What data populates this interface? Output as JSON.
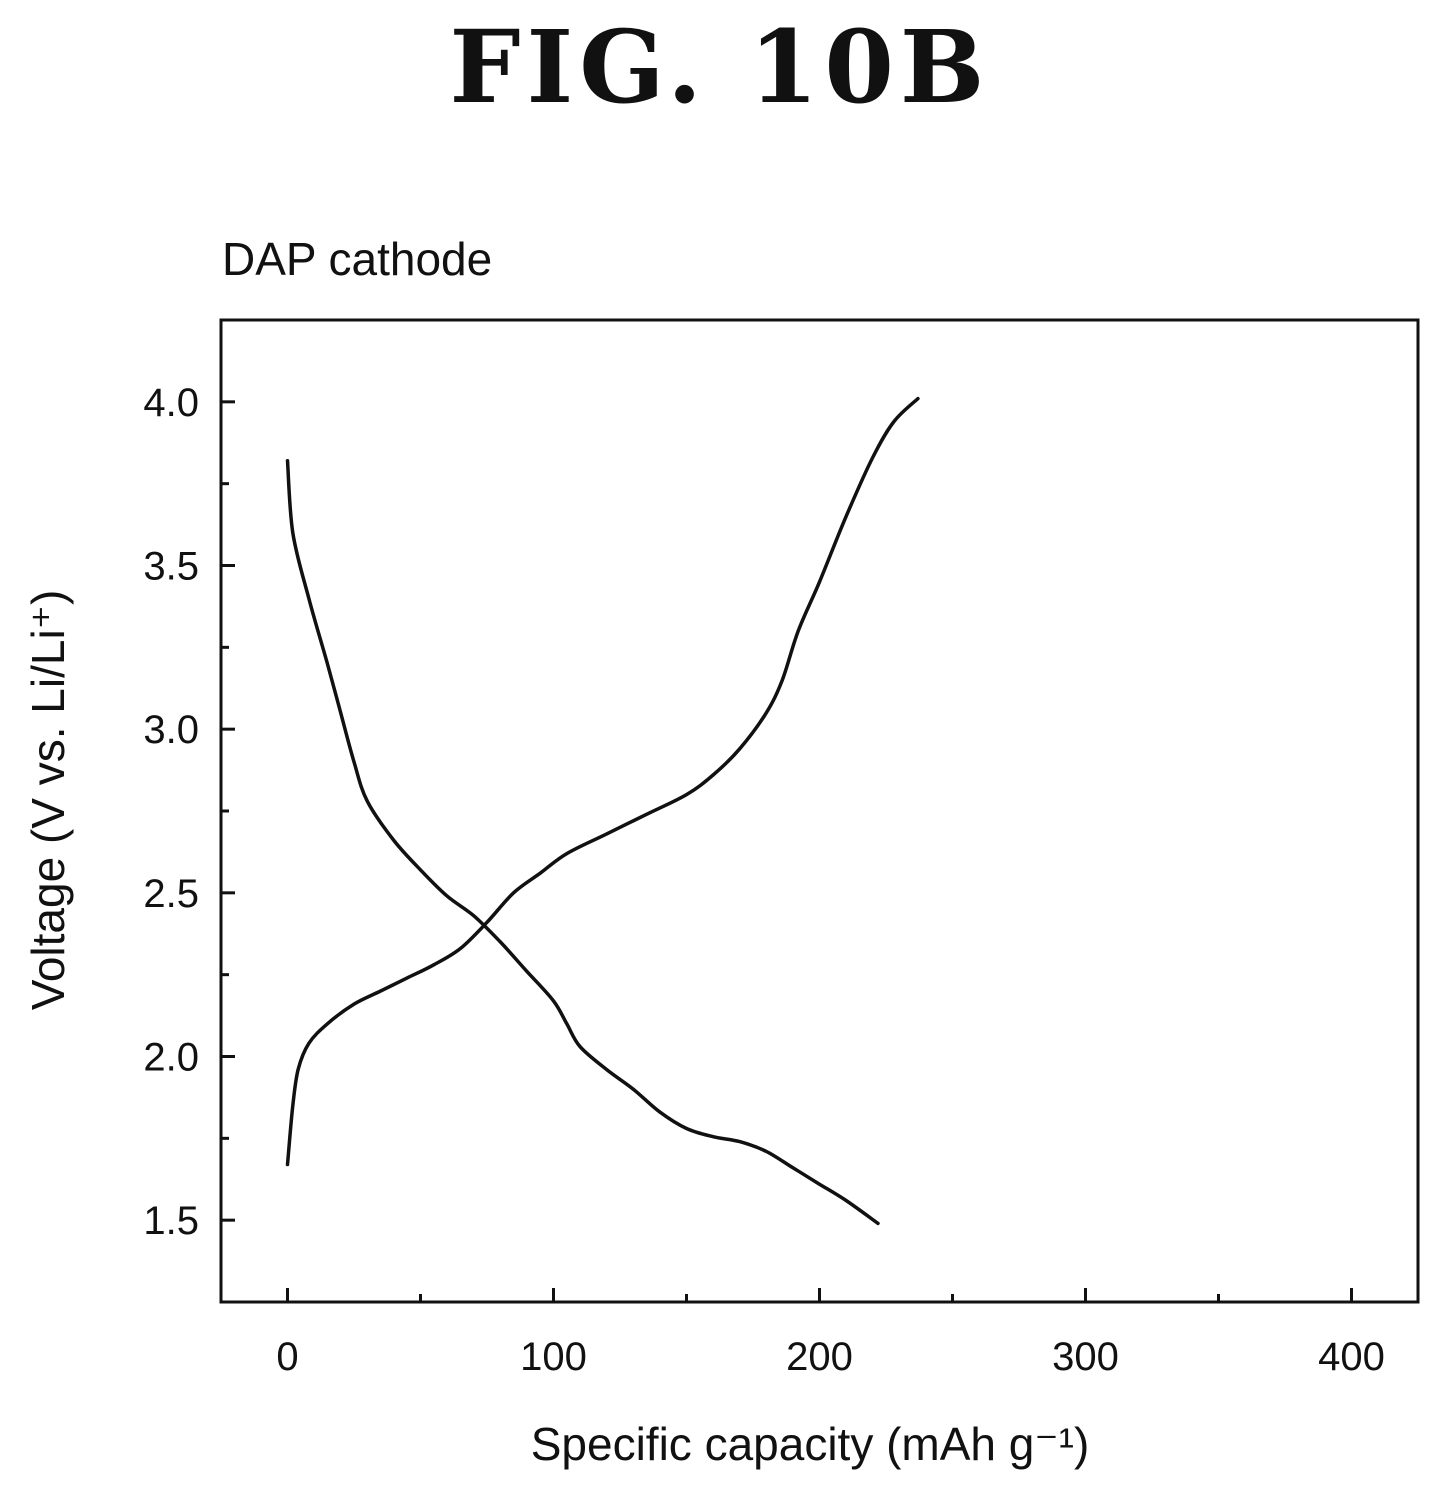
{
  "figure_label": "FIG. 10B",
  "chart_data": {
    "type": "line",
    "title": "DAP cathode",
    "xlabel": "Specific capacity (mAh g⁻¹)",
    "ylabel": "Voltage (V vs. Li/Li⁺)",
    "xlim": [
      -25,
      425
    ],
    "ylim": [
      1.25,
      4.25
    ],
    "xticks": [
      0,
      100,
      200,
      300,
      400
    ],
    "xtick_labels": [
      "0",
      "100",
      "200",
      "300",
      "400"
    ],
    "xminor": [
      50,
      150,
      250,
      350
    ],
    "yticks": [
      1.5,
      2.0,
      2.5,
      3.0,
      3.5,
      4.0
    ],
    "ytick_labels": [
      "1.5",
      "2.0",
      "2.5",
      "3.0",
      "3.5",
      "4.0"
    ],
    "yminor": [
      1.75,
      2.25,
      2.75,
      3.25,
      3.75
    ],
    "grid": false,
    "line_color": "#111111",
    "series": [
      {
        "values": [
          [
            0,
            3.82
          ],
          [
            2,
            3.6
          ],
          [
            8,
            3.4
          ],
          [
            15,
            3.2
          ],
          [
            20,
            3.05
          ],
          [
            25,
            2.9
          ],
          [
            30,
            2.78
          ],
          [
            40,
            2.66
          ],
          [
            50,
            2.57
          ],
          [
            60,
            2.49
          ],
          [
            70,
            2.43
          ],
          [
            80,
            2.35
          ],
          [
            90,
            2.26
          ],
          [
            100,
            2.17
          ],
          [
            105,
            2.1
          ],
          [
            110,
            2.03
          ],
          [
            120,
            1.96
          ],
          [
            130,
            1.9
          ],
          [
            140,
            1.83
          ],
          [
            150,
            1.78
          ],
          [
            160,
            1.755
          ],
          [
            170,
            1.74
          ],
          [
            180,
            1.71
          ],
          [
            190,
            1.66
          ],
          [
            200,
            1.61
          ],
          [
            210,
            1.56
          ],
          [
            222,
            1.49
          ]
        ]
      },
      {
        "values": [
          [
            0,
            1.67
          ],
          [
            2,
            1.85
          ],
          [
            4,
            1.96
          ],
          [
            8,
            2.04
          ],
          [
            15,
            2.1
          ],
          [
            25,
            2.16
          ],
          [
            35,
            2.2
          ],
          [
            45,
            2.24
          ],
          [
            55,
            2.28
          ],
          [
            65,
            2.33
          ],
          [
            75,
            2.41
          ],
          [
            85,
            2.5
          ],
          [
            95,
            2.56
          ],
          [
            105,
            2.62
          ],
          [
            120,
            2.68
          ],
          [
            135,
            2.74
          ],
          [
            150,
            2.8
          ],
          [
            160,
            2.86
          ],
          [
            170,
            2.94
          ],
          [
            180,
            3.05
          ],
          [
            186,
            3.15
          ],
          [
            192,
            3.3
          ],
          [
            200,
            3.45
          ],
          [
            210,
            3.65
          ],
          [
            220,
            3.83
          ],
          [
            228,
            3.94
          ],
          [
            237,
            4.01
          ]
        ]
      }
    ]
  }
}
